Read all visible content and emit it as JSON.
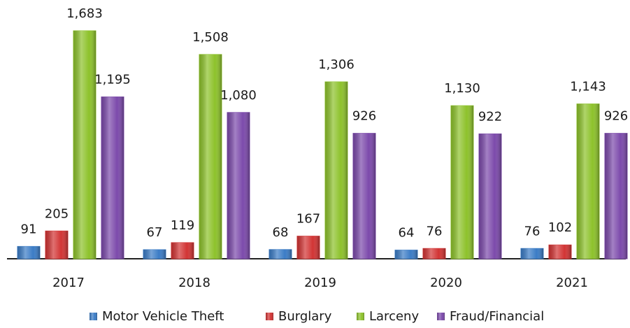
{
  "chart_data": {
    "type": "bar",
    "categories": [
      "2017",
      "2018",
      "2019",
      "2020",
      "2021"
    ],
    "series": [
      {
        "name": "Motor Vehicle Theft",
        "color": "#3b7cc6",
        "values": [
          91,
          67,
          68,
          64,
          76
        ],
        "value_labels": [
          "91",
          "67",
          "68",
          "64",
          "76"
        ]
      },
      {
        "name": "Burglary",
        "color": "#d23434",
        "values": [
          205,
          119,
          167,
          76,
          102
        ],
        "value_labels": [
          "205",
          "119",
          "167",
          "76",
          "102"
        ]
      },
      {
        "name": "Larceny",
        "color": "#8dc22b",
        "values": [
          1683,
          1508,
          1306,
          1130,
          1143
        ],
        "value_labels": [
          "1,683",
          "1,508",
          "1,306",
          "1,130",
          "1,143"
        ]
      },
      {
        "name": "Fraud/Financial",
        "color": "#7c4aab",
        "values": [
          1195,
          1080,
          926,
          922,
          926
        ],
        "value_labels": [
          "1,195",
          "1,080",
          "926",
          "922",
          "926"
        ]
      }
    ]
  }
}
